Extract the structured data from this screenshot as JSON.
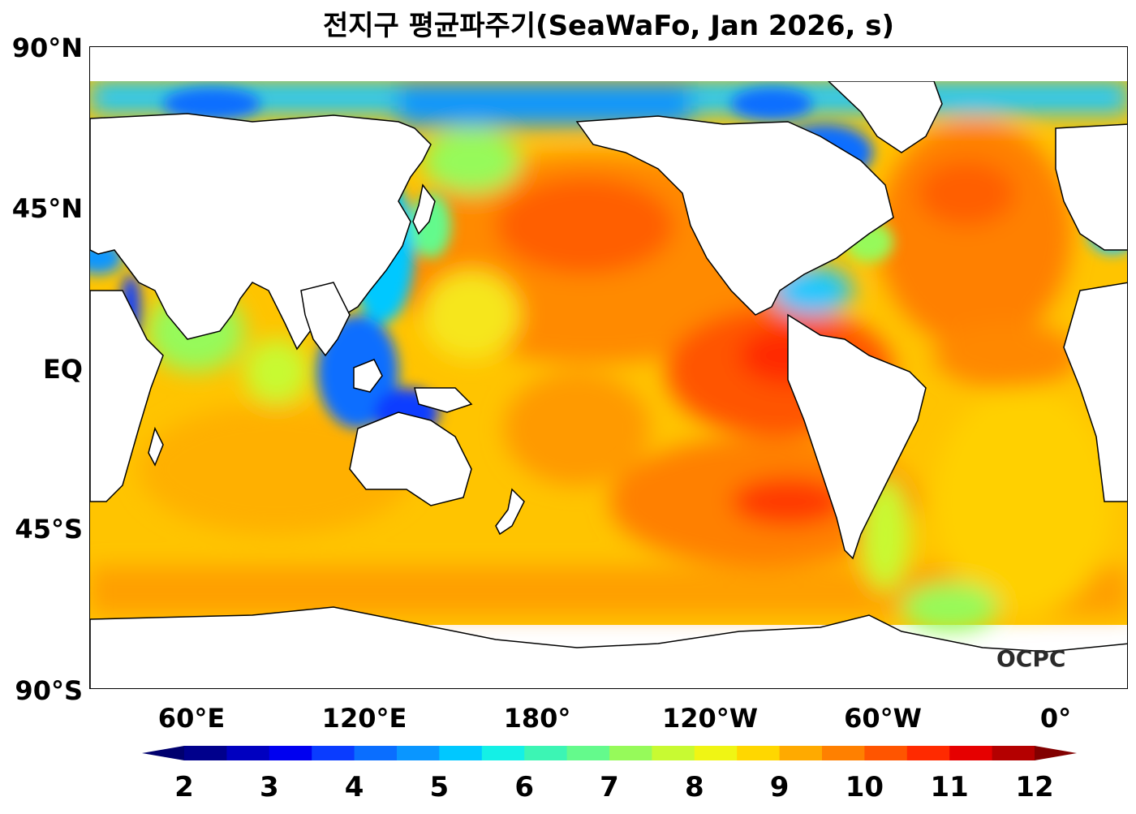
{
  "title": "전지구 평균파주기(SeaWaFo, Jan 2026, s)",
  "watermark": "OCPC",
  "axes": {
    "y_ticks": [
      "90°N",
      "45°N",
      "EQ",
      "45°S",
      "90°S"
    ],
    "x_ticks": [
      "60°E",
      "120°E",
      "180°",
      "120°W",
      "60°W",
      "0°"
    ]
  },
  "colorbar": {
    "ticks": [
      "2",
      "3",
      "4",
      "5",
      "6",
      "7",
      "8",
      "9",
      "10",
      "11",
      "12"
    ],
    "min": 2,
    "max": 12,
    "step": 0.5,
    "extend": "both",
    "colors": [
      "#00008c",
      "#0000c0",
      "#0000f0",
      "#0a3cff",
      "#0a6eff",
      "#0a96ff",
      "#00c8ff",
      "#14f0e6",
      "#3cf5b4",
      "#64fa8c",
      "#96fa5a",
      "#c8fa32",
      "#f0f514",
      "#ffd700",
      "#ffaa00",
      "#ff8000",
      "#ff5500",
      "#ff2a00",
      "#e60000",
      "#b40000"
    ],
    "under_color": "#00006e",
    "over_color": "#820000"
  },
  "land_color": "#ffffff",
  "coast_color": "#000000",
  "regions": {
    "north_pacific": "10",
    "north_atlantic": "10",
    "equatorial_east_pacific": "10.5",
    "south_pacific": "10",
    "southern_ocean": "9",
    "indian_ocean": "9",
    "arctic": "4.5",
    "indonesian_seas": "3.5"
  }
}
